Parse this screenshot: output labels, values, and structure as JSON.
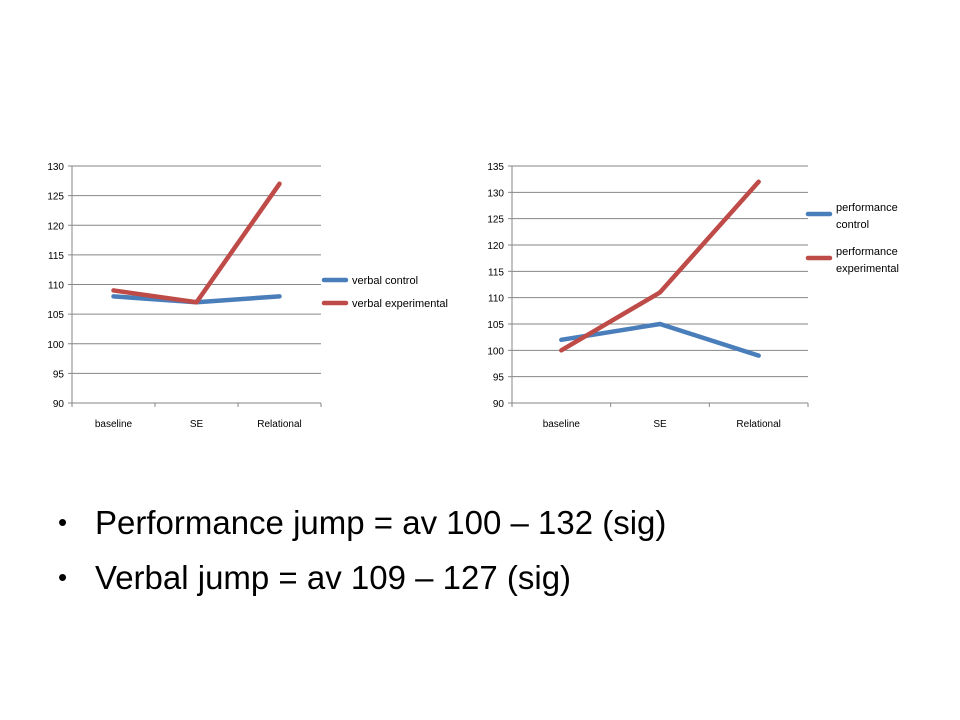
{
  "chart_data": [
    {
      "type": "line",
      "categories": [
        "baseline",
        "SE",
        "Relational"
      ],
      "series": [
        {
          "name": "verbal control",
          "values": [
            108,
            107,
            108
          ],
          "color": "#4a7ebb"
        },
        {
          "name": "verbal experimental",
          "values": [
            109,
            107,
            127
          ],
          "color": "#be4b48"
        }
      ],
      "ylim": [
        90,
        130
      ],
      "yticks": [
        90,
        95,
        100,
        105,
        110,
        115,
        120,
        125,
        130
      ],
      "grid": true,
      "legend": "right"
    },
    {
      "type": "line",
      "categories": [
        "baseline",
        "SE",
        "Relational"
      ],
      "series": [
        {
          "name": "performance control",
          "values": [
            102,
            105,
            99
          ],
          "color": "#4a7ebb"
        },
        {
          "name": "performance experimental",
          "values": [
            100,
            111,
            132
          ],
          "color": "#be4b48"
        }
      ],
      "ylim": [
        90,
        135
      ],
      "yticks": [
        90,
        95,
        100,
        105,
        110,
        115,
        120,
        125,
        130,
        135
      ],
      "grid": true,
      "legend": "right"
    }
  ],
  "bullets": [
    "Performance jump = av 100 – 132 (sig)",
    "Verbal jump = av 109 – 127 (sig)"
  ]
}
